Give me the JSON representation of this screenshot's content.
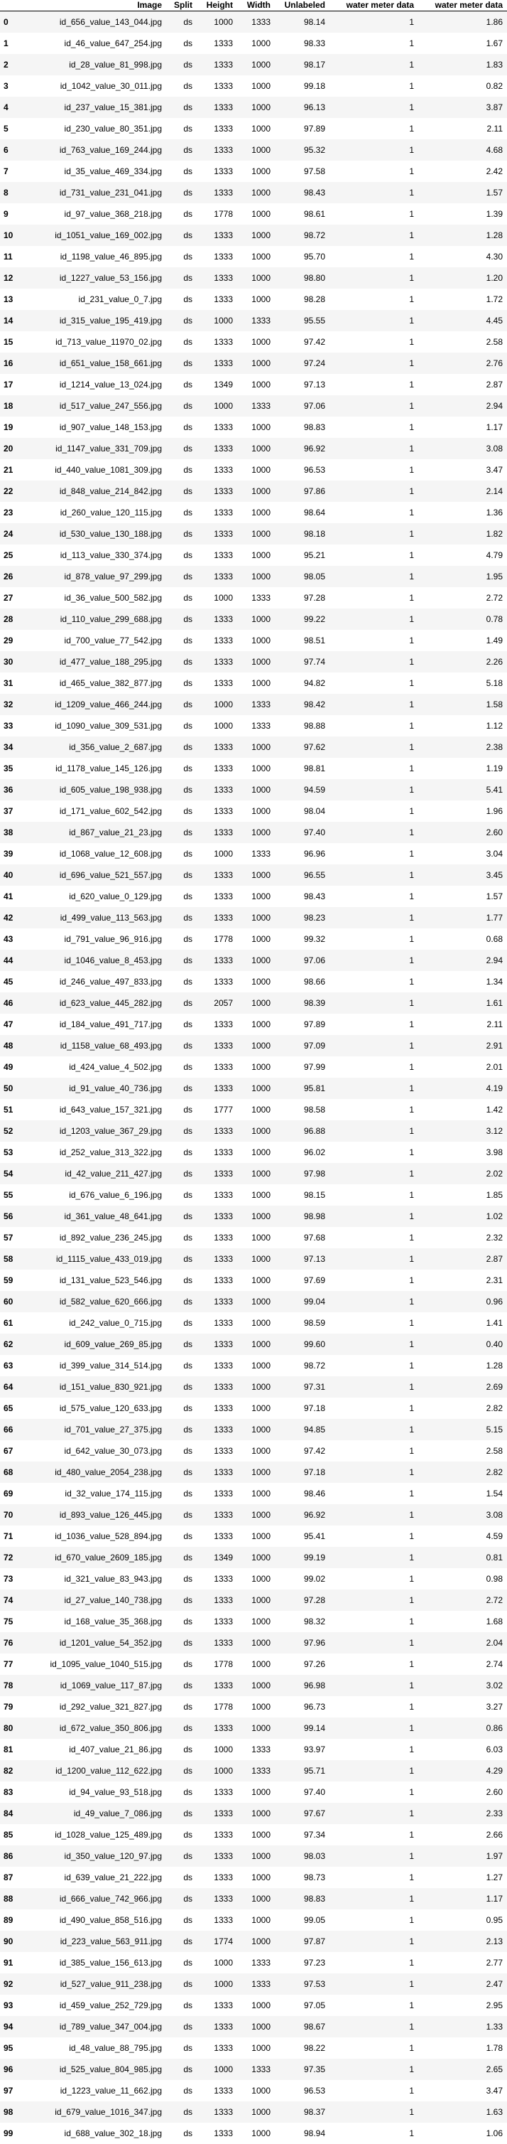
{
  "columns": [
    "",
    "Image",
    "Split",
    "Height",
    "Width",
    "Unlabeled",
    "water meter data",
    "water meter data"
  ],
  "rows": [
    [
      "0",
      "id_656_value_143_044.jpg",
      "ds",
      "1000",
      "1333",
      "98.14",
      "1",
      "1.86"
    ],
    [
      "1",
      "id_46_value_647_254.jpg",
      "ds",
      "1333",
      "1000",
      "98.33",
      "1",
      "1.67"
    ],
    [
      "2",
      "id_28_value_81_998.jpg",
      "ds",
      "1333",
      "1000",
      "98.17",
      "1",
      "1.83"
    ],
    [
      "3",
      "id_1042_value_30_011.jpg",
      "ds",
      "1333",
      "1000",
      "99.18",
      "1",
      "0.82"
    ],
    [
      "4",
      "id_237_value_15_381.jpg",
      "ds",
      "1333",
      "1000",
      "96.13",
      "1",
      "3.87"
    ],
    [
      "5",
      "id_230_value_80_351.jpg",
      "ds",
      "1333",
      "1000",
      "97.89",
      "1",
      "2.11"
    ],
    [
      "6",
      "id_763_value_169_244.jpg",
      "ds",
      "1333",
      "1000",
      "95.32",
      "1",
      "4.68"
    ],
    [
      "7",
      "id_35_value_469_334.jpg",
      "ds",
      "1333",
      "1000",
      "97.58",
      "1",
      "2.42"
    ],
    [
      "8",
      "id_731_value_231_041.jpg",
      "ds",
      "1333",
      "1000",
      "98.43",
      "1",
      "1.57"
    ],
    [
      "9",
      "id_97_value_368_218.jpg",
      "ds",
      "1778",
      "1000",
      "98.61",
      "1",
      "1.39"
    ],
    [
      "10",
      "id_1051_value_169_002.jpg",
      "ds",
      "1333",
      "1000",
      "98.72",
      "1",
      "1.28"
    ],
    [
      "11",
      "id_1198_value_46_895.jpg",
      "ds",
      "1333",
      "1000",
      "95.70",
      "1",
      "4.30"
    ],
    [
      "12",
      "id_1227_value_53_156.jpg",
      "ds",
      "1333",
      "1000",
      "98.80",
      "1",
      "1.20"
    ],
    [
      "13",
      "id_231_value_0_7.jpg",
      "ds",
      "1333",
      "1000",
      "98.28",
      "1",
      "1.72"
    ],
    [
      "14",
      "id_315_value_195_419.jpg",
      "ds",
      "1000",
      "1333",
      "95.55",
      "1",
      "4.45"
    ],
    [
      "15",
      "id_713_value_11970_02.jpg",
      "ds",
      "1333",
      "1000",
      "97.42",
      "1",
      "2.58"
    ],
    [
      "16",
      "id_651_value_158_661.jpg",
      "ds",
      "1333",
      "1000",
      "97.24",
      "1",
      "2.76"
    ],
    [
      "17",
      "id_1214_value_13_024.jpg",
      "ds",
      "1349",
      "1000",
      "97.13",
      "1",
      "2.87"
    ],
    [
      "18",
      "id_517_value_247_556.jpg",
      "ds",
      "1000",
      "1333",
      "97.06",
      "1",
      "2.94"
    ],
    [
      "19",
      "id_907_value_148_153.jpg",
      "ds",
      "1333",
      "1000",
      "98.83",
      "1",
      "1.17"
    ],
    [
      "20",
      "id_1147_value_331_709.jpg",
      "ds",
      "1333",
      "1000",
      "96.92",
      "1",
      "3.08"
    ],
    [
      "21",
      "id_440_value_1081_309.jpg",
      "ds",
      "1333",
      "1000",
      "96.53",
      "1",
      "3.47"
    ],
    [
      "22",
      "id_848_value_214_842.jpg",
      "ds",
      "1333",
      "1000",
      "97.86",
      "1",
      "2.14"
    ],
    [
      "23",
      "id_260_value_120_115.jpg",
      "ds",
      "1333",
      "1000",
      "98.64",
      "1",
      "1.36"
    ],
    [
      "24",
      "id_530_value_130_188.jpg",
      "ds",
      "1333",
      "1000",
      "98.18",
      "1",
      "1.82"
    ],
    [
      "25",
      "id_113_value_330_374.jpg",
      "ds",
      "1333",
      "1000",
      "95.21",
      "1",
      "4.79"
    ],
    [
      "26",
      "id_878_value_97_299.jpg",
      "ds",
      "1333",
      "1000",
      "98.05",
      "1",
      "1.95"
    ],
    [
      "27",
      "id_36_value_500_582.jpg",
      "ds",
      "1000",
      "1333",
      "97.28",
      "1",
      "2.72"
    ],
    [
      "28",
      "id_110_value_299_688.jpg",
      "ds",
      "1333",
      "1000",
      "99.22",
      "1",
      "0.78"
    ],
    [
      "29",
      "id_700_value_77_542.jpg",
      "ds",
      "1333",
      "1000",
      "98.51",
      "1",
      "1.49"
    ],
    [
      "30",
      "id_477_value_188_295.jpg",
      "ds",
      "1333",
      "1000",
      "97.74",
      "1",
      "2.26"
    ],
    [
      "31",
      "id_465_value_382_877.jpg",
      "ds",
      "1333",
      "1000",
      "94.82",
      "1",
      "5.18"
    ],
    [
      "32",
      "id_1209_value_466_244.jpg",
      "ds",
      "1000",
      "1333",
      "98.42",
      "1",
      "1.58"
    ],
    [
      "33",
      "id_1090_value_309_531.jpg",
      "ds",
      "1000",
      "1333",
      "98.88",
      "1",
      "1.12"
    ],
    [
      "34",
      "id_356_value_2_687.jpg",
      "ds",
      "1333",
      "1000",
      "97.62",
      "1",
      "2.38"
    ],
    [
      "35",
      "id_1178_value_145_126.jpg",
      "ds",
      "1333",
      "1000",
      "98.81",
      "1",
      "1.19"
    ],
    [
      "36",
      "id_605_value_198_938.jpg",
      "ds",
      "1333",
      "1000",
      "94.59",
      "1",
      "5.41"
    ],
    [
      "37",
      "id_171_value_602_542.jpg",
      "ds",
      "1333",
      "1000",
      "98.04",
      "1",
      "1.96"
    ],
    [
      "38",
      "id_867_value_21_23.jpg",
      "ds",
      "1333",
      "1000",
      "97.40",
      "1",
      "2.60"
    ],
    [
      "39",
      "id_1068_value_12_608.jpg",
      "ds",
      "1000",
      "1333",
      "96.96",
      "1",
      "3.04"
    ],
    [
      "40",
      "id_696_value_521_557.jpg",
      "ds",
      "1333",
      "1000",
      "96.55",
      "1",
      "3.45"
    ],
    [
      "41",
      "id_620_value_0_129.jpg",
      "ds",
      "1333",
      "1000",
      "98.43",
      "1",
      "1.57"
    ],
    [
      "42",
      "id_499_value_113_563.jpg",
      "ds",
      "1333",
      "1000",
      "98.23",
      "1",
      "1.77"
    ],
    [
      "43",
      "id_791_value_96_916.jpg",
      "ds",
      "1778",
      "1000",
      "99.32",
      "1",
      "0.68"
    ],
    [
      "44",
      "id_1046_value_8_453.jpg",
      "ds",
      "1333",
      "1000",
      "97.06",
      "1",
      "2.94"
    ],
    [
      "45",
      "id_246_value_497_833.jpg",
      "ds",
      "1333",
      "1000",
      "98.66",
      "1",
      "1.34"
    ],
    [
      "46",
      "id_623_value_445_282.jpg",
      "ds",
      "2057",
      "1000",
      "98.39",
      "1",
      "1.61"
    ],
    [
      "47",
      "id_184_value_491_717.jpg",
      "ds",
      "1333",
      "1000",
      "97.89",
      "1",
      "2.11"
    ],
    [
      "48",
      "id_1158_value_68_493.jpg",
      "ds",
      "1333",
      "1000",
      "97.09",
      "1",
      "2.91"
    ],
    [
      "49",
      "id_424_value_4_502.jpg",
      "ds",
      "1333",
      "1000",
      "97.99",
      "1",
      "2.01"
    ],
    [
      "50",
      "id_91_value_40_736.jpg",
      "ds",
      "1333",
      "1000",
      "95.81",
      "1",
      "4.19"
    ],
    [
      "51",
      "id_643_value_157_321.jpg",
      "ds",
      "1777",
      "1000",
      "98.58",
      "1",
      "1.42"
    ],
    [
      "52",
      "id_1203_value_367_29.jpg",
      "ds",
      "1333",
      "1000",
      "96.88",
      "1",
      "3.12"
    ],
    [
      "53",
      "id_252_value_313_322.jpg",
      "ds",
      "1333",
      "1000",
      "96.02",
      "1",
      "3.98"
    ],
    [
      "54",
      "id_42_value_211_427.jpg",
      "ds",
      "1333",
      "1000",
      "97.98",
      "1",
      "2.02"
    ],
    [
      "55",
      "id_676_value_6_196.jpg",
      "ds",
      "1333",
      "1000",
      "98.15",
      "1",
      "1.85"
    ],
    [
      "56",
      "id_361_value_48_641.jpg",
      "ds",
      "1333",
      "1000",
      "98.98",
      "1",
      "1.02"
    ],
    [
      "57",
      "id_892_value_236_245.jpg",
      "ds",
      "1333",
      "1000",
      "97.68",
      "1",
      "2.32"
    ],
    [
      "58",
      "id_1115_value_433_019.jpg",
      "ds",
      "1333",
      "1000",
      "97.13",
      "1",
      "2.87"
    ],
    [
      "59",
      "id_131_value_523_546.jpg",
      "ds",
      "1333",
      "1000",
      "97.69",
      "1",
      "2.31"
    ],
    [
      "60",
      "id_582_value_620_666.jpg",
      "ds",
      "1333",
      "1000",
      "99.04",
      "1",
      "0.96"
    ],
    [
      "61",
      "id_242_value_0_715.jpg",
      "ds",
      "1333",
      "1000",
      "98.59",
      "1",
      "1.41"
    ],
    [
      "62",
      "id_609_value_269_85.jpg",
      "ds",
      "1333",
      "1000",
      "99.60",
      "1",
      "0.40"
    ],
    [
      "63",
      "id_399_value_314_514.jpg",
      "ds",
      "1333",
      "1000",
      "98.72",
      "1",
      "1.28"
    ],
    [
      "64",
      "id_151_value_830_921.jpg",
      "ds",
      "1333",
      "1000",
      "97.31",
      "1",
      "2.69"
    ],
    [
      "65",
      "id_575_value_120_633.jpg",
      "ds",
      "1333",
      "1000",
      "97.18",
      "1",
      "2.82"
    ],
    [
      "66",
      "id_701_value_27_375.jpg",
      "ds",
      "1333",
      "1000",
      "94.85",
      "1",
      "5.15"
    ],
    [
      "67",
      "id_642_value_30_073.jpg",
      "ds",
      "1333",
      "1000",
      "97.42",
      "1",
      "2.58"
    ],
    [
      "68",
      "id_480_value_2054_238.jpg",
      "ds",
      "1333",
      "1000",
      "97.18",
      "1",
      "2.82"
    ],
    [
      "69",
      "id_32_value_174_115.jpg",
      "ds",
      "1333",
      "1000",
      "98.46",
      "1",
      "1.54"
    ],
    [
      "70",
      "id_893_value_126_445.jpg",
      "ds",
      "1333",
      "1000",
      "96.92",
      "1",
      "3.08"
    ],
    [
      "71",
      "id_1036_value_528_894.jpg",
      "ds",
      "1333",
      "1000",
      "95.41",
      "1",
      "4.59"
    ],
    [
      "72",
      "id_670_value_2609_185.jpg",
      "ds",
      "1349",
      "1000",
      "99.19",
      "1",
      "0.81"
    ],
    [
      "73",
      "id_321_value_83_943.jpg",
      "ds",
      "1333",
      "1000",
      "99.02",
      "1",
      "0.98"
    ],
    [
      "74",
      "id_27_value_140_738.jpg",
      "ds",
      "1333",
      "1000",
      "97.28",
      "1",
      "2.72"
    ],
    [
      "75",
      "id_168_value_35_368.jpg",
      "ds",
      "1333",
      "1000",
      "98.32",
      "1",
      "1.68"
    ],
    [
      "76",
      "id_1201_value_54_352.jpg",
      "ds",
      "1333",
      "1000",
      "97.96",
      "1",
      "2.04"
    ],
    [
      "77",
      "id_1095_value_1040_515.jpg",
      "ds",
      "1778",
      "1000",
      "97.26",
      "1",
      "2.74"
    ],
    [
      "78",
      "id_1069_value_117_87.jpg",
      "ds",
      "1333",
      "1000",
      "96.98",
      "1",
      "3.02"
    ],
    [
      "79",
      "id_292_value_321_827.jpg",
      "ds",
      "1778",
      "1000",
      "96.73",
      "1",
      "3.27"
    ],
    [
      "80",
      "id_672_value_350_806.jpg",
      "ds",
      "1333",
      "1000",
      "99.14",
      "1",
      "0.86"
    ],
    [
      "81",
      "id_407_value_21_86.jpg",
      "ds",
      "1000",
      "1333",
      "93.97",
      "1",
      "6.03"
    ],
    [
      "82",
      "id_1200_value_112_622.jpg",
      "ds",
      "1000",
      "1333",
      "95.71",
      "1",
      "4.29"
    ],
    [
      "83",
      "id_94_value_93_518.jpg",
      "ds",
      "1333",
      "1000",
      "97.40",
      "1",
      "2.60"
    ],
    [
      "84",
      "id_49_value_7_086.jpg",
      "ds",
      "1333",
      "1000",
      "97.67",
      "1",
      "2.33"
    ],
    [
      "85",
      "id_1028_value_125_489.jpg",
      "ds",
      "1333",
      "1000",
      "97.34",
      "1",
      "2.66"
    ],
    [
      "86",
      "id_350_value_120_97.jpg",
      "ds",
      "1333",
      "1000",
      "98.03",
      "1",
      "1.97"
    ],
    [
      "87",
      "id_639_value_21_222.jpg",
      "ds",
      "1333",
      "1000",
      "98.73",
      "1",
      "1.27"
    ],
    [
      "88",
      "id_666_value_742_966.jpg",
      "ds",
      "1333",
      "1000",
      "98.83",
      "1",
      "1.17"
    ],
    [
      "89",
      "id_490_value_858_516.jpg",
      "ds",
      "1333",
      "1000",
      "99.05",
      "1",
      "0.95"
    ],
    [
      "90",
      "id_223_value_563_911.jpg",
      "ds",
      "1774",
      "1000",
      "97.87",
      "1",
      "2.13"
    ],
    [
      "91",
      "id_385_value_156_613.jpg",
      "ds",
      "1000",
      "1333",
      "97.23",
      "1",
      "2.77"
    ],
    [
      "92",
      "id_527_value_911_238.jpg",
      "ds",
      "1000",
      "1333",
      "97.53",
      "1",
      "2.47"
    ],
    [
      "93",
      "id_459_value_252_729.jpg",
      "ds",
      "1333",
      "1000",
      "97.05",
      "1",
      "2.95"
    ],
    [
      "94",
      "id_789_value_347_004.jpg",
      "ds",
      "1333",
      "1000",
      "98.67",
      "1",
      "1.33"
    ],
    [
      "95",
      "id_48_value_88_795.jpg",
      "ds",
      "1333",
      "1000",
      "98.22",
      "1",
      "1.78"
    ],
    [
      "96",
      "id_525_value_804_985.jpg",
      "ds",
      "1000",
      "1333",
      "97.35",
      "1",
      "2.65"
    ],
    [
      "97",
      "id_1223_value_11_662.jpg",
      "ds",
      "1333",
      "1000",
      "96.53",
      "1",
      "3.47"
    ],
    [
      "98",
      "id_679_value_1016_347.jpg",
      "ds",
      "1333",
      "1000",
      "98.37",
      "1",
      "1.63"
    ],
    [
      "99",
      "id_688_value_302_18.jpg",
      "ds",
      "1333",
      "1000",
      "98.94",
      "1",
      "1.06"
    ]
  ]
}
